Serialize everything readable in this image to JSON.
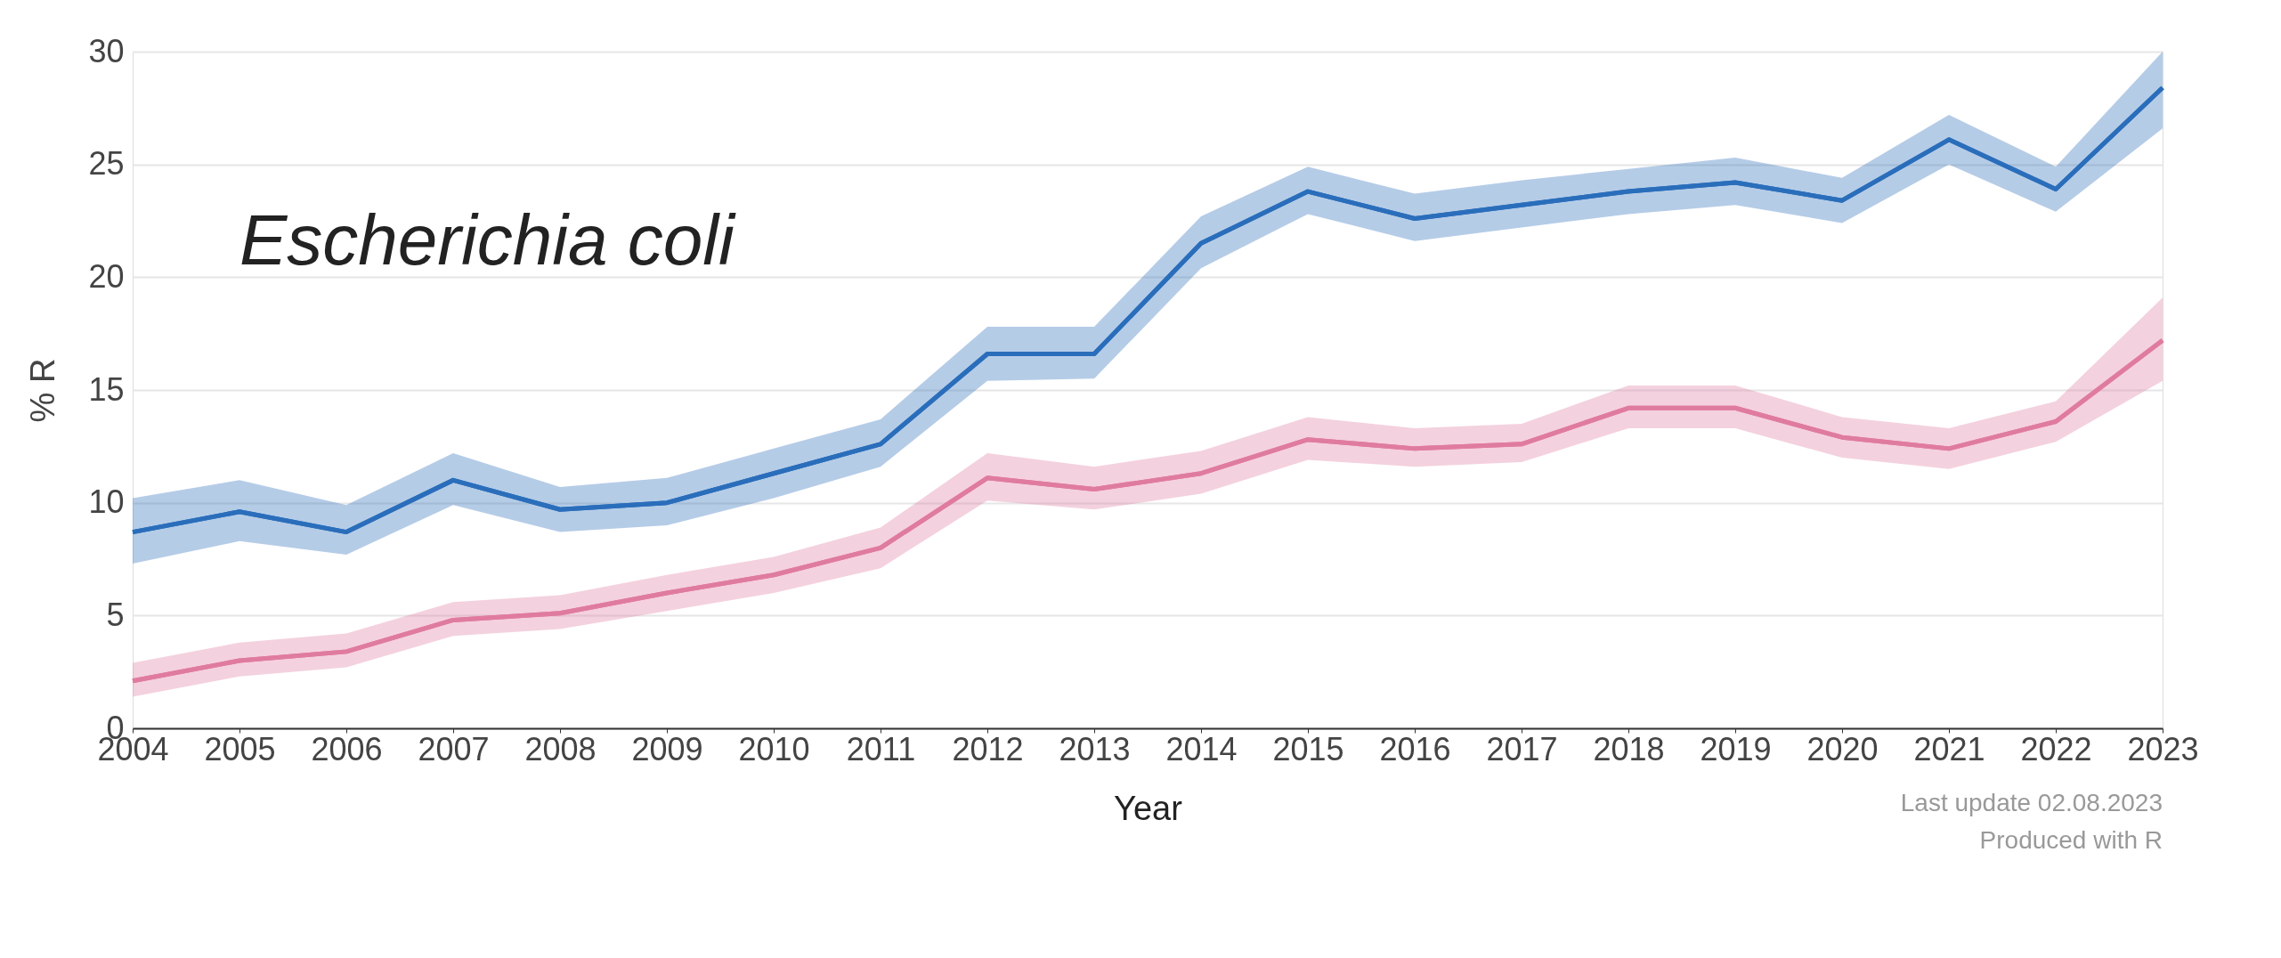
{
  "chart_data": {
    "type": "line",
    "title": "Escherichia coli",
    "xlabel": "Year",
    "ylabel": "% R",
    "x": [
      2004,
      2005,
      2006,
      2007,
      2008,
      2009,
      2010,
      2011,
      2012,
      2013,
      2014,
      2015,
      2016,
      2017,
      2018,
      2019,
      2020,
      2021,
      2022,
      2023
    ],
    "series": [
      {
        "color": "#2a6ebb",
        "values": [
          8.7,
          9.6,
          8.7,
          11.0,
          9.7,
          10.0,
          11.3,
          12.6,
          16.6,
          16.6,
          21.5,
          23.8,
          22.6,
          23.2,
          23.8,
          24.2,
          23.4,
          26.1,
          23.9,
          28.4
        ],
        "lower": [
          7.3,
          8.3,
          7.7,
          9.9,
          8.7,
          9.0,
          10.2,
          11.6,
          15.4,
          15.5,
          20.4,
          22.8,
          21.6,
          22.2,
          22.8,
          23.2,
          22.4,
          25.0,
          22.9,
          26.6
        ],
        "upper": [
          10.2,
          11.0,
          9.9,
          12.2,
          10.7,
          11.1,
          12.4,
          13.7,
          17.8,
          17.8,
          22.7,
          24.9,
          23.7,
          24.3,
          24.8,
          25.3,
          24.4,
          27.2,
          24.9,
          30.0
        ]
      },
      {
        "color": "#e07ba0",
        "values": [
          2.1,
          3.0,
          3.4,
          4.8,
          5.1,
          6.0,
          6.8,
          8.0,
          11.1,
          10.6,
          11.3,
          12.8,
          12.4,
          12.6,
          14.2,
          14.2,
          12.9,
          12.4,
          13.6,
          17.2
        ],
        "lower": [
          1.4,
          2.3,
          2.7,
          4.1,
          4.4,
          5.2,
          6.0,
          7.1,
          10.1,
          9.7,
          10.4,
          11.9,
          11.6,
          11.8,
          13.3,
          13.3,
          12.0,
          11.5,
          12.7,
          15.4
        ],
        "upper": [
          2.9,
          3.8,
          4.2,
          5.6,
          5.9,
          6.8,
          7.6,
          8.9,
          12.2,
          11.6,
          12.3,
          13.8,
          13.3,
          13.5,
          15.2,
          15.2,
          13.8,
          13.3,
          14.5,
          19.1
        ]
      }
    ],
    "xlim": [
      2004,
      2023
    ],
    "xticks": [
      2004,
      2005,
      2006,
      2007,
      2008,
      2009,
      2010,
      2011,
      2012,
      2013,
      2014,
      2015,
      2016,
      2017,
      2018,
      2019,
      2020,
      2021,
      2022,
      2023
    ],
    "ylim": [
      0,
      30
    ],
    "yticks": [
      0,
      5,
      10,
      15,
      20,
      25,
      30
    ],
    "grid": "y",
    "line_style": "solid",
    "marker": "none",
    "annotations": [
      "Last update 02.08.2023",
      "Produced with R"
    ]
  }
}
